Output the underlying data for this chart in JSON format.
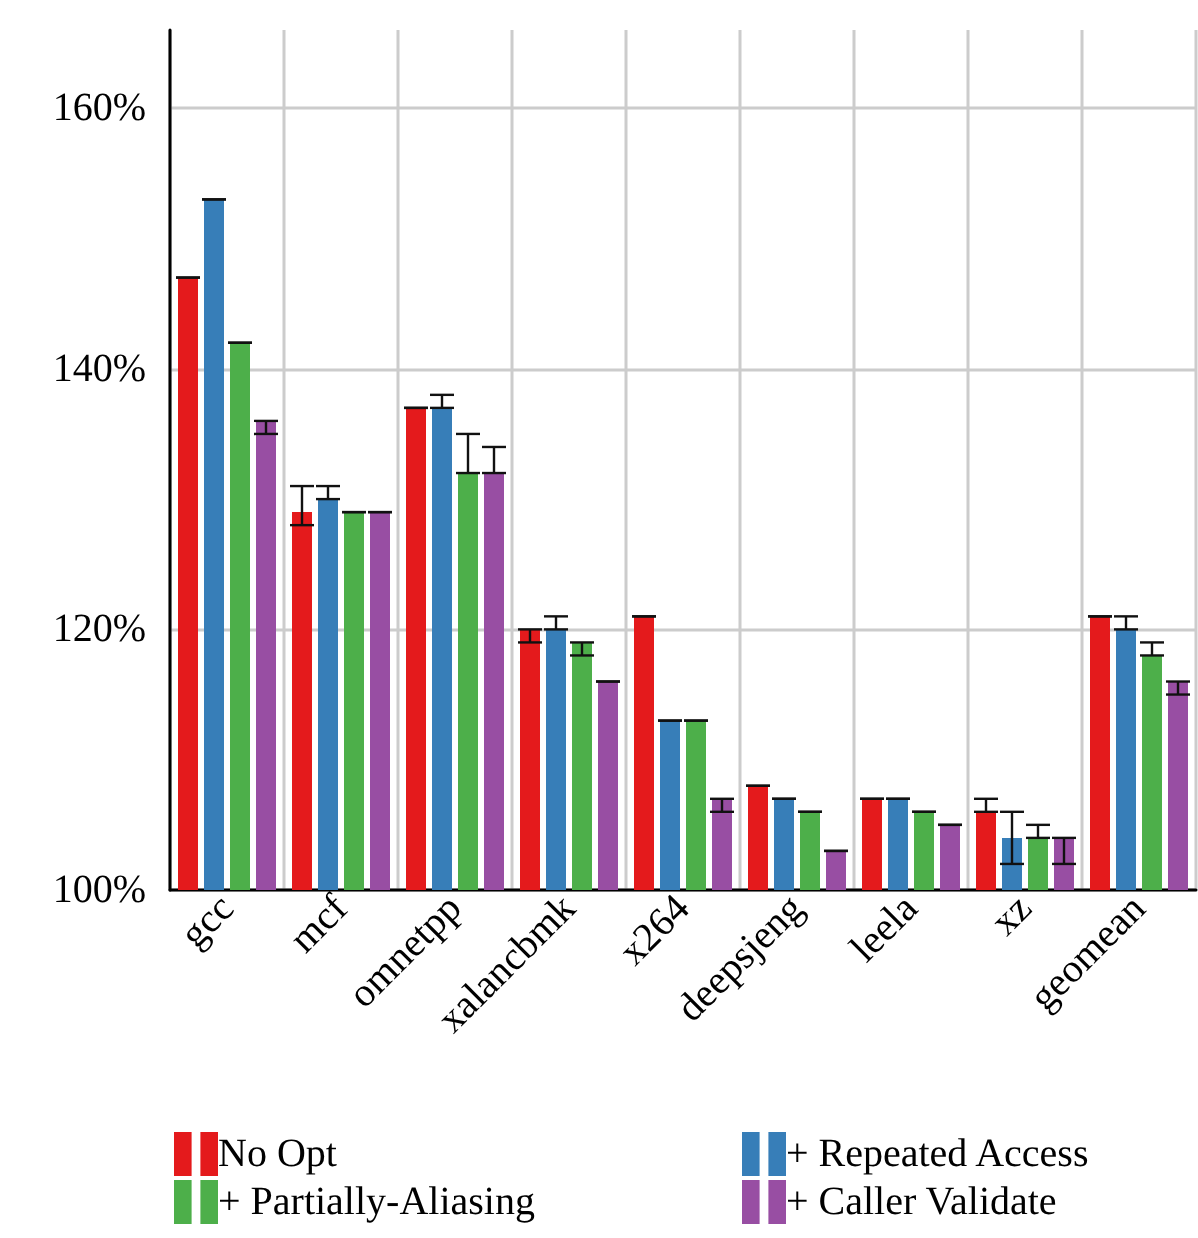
{
  "chart_data": {
    "type": "bar",
    "categories": [
      "gcc",
      "mcf",
      "omnetpp",
      "xalancbmk",
      "x264",
      "deepsjeng",
      "leela",
      "xz",
      "geomean"
    ],
    "series": [
      {
        "name": "No Opt",
        "color": "#e41a1c",
        "values": [
          147,
          129,
          137,
          120,
          121,
          108,
          107,
          106,
          121
        ],
        "errors": [
          [
            147,
            147
          ],
          [
            128,
            131
          ],
          [
            137,
            137
          ],
          [
            119,
            120
          ],
          [
            121,
            121
          ],
          [
            108,
            108
          ],
          [
            107,
            107
          ],
          [
            106,
            107
          ],
          [
            121,
            121
          ]
        ]
      },
      {
        "name": "+ Repeated Access",
        "color": "#377eb8",
        "values": [
          153,
          130,
          137,
          120,
          113,
          107,
          107,
          104,
          120
        ],
        "errors": [
          [
            153,
            153
          ],
          [
            130,
            131
          ],
          [
            137,
            138
          ],
          [
            120,
            121
          ],
          [
            113,
            113
          ],
          [
            107,
            107
          ],
          [
            107,
            107
          ],
          [
            102,
            106
          ],
          [
            120,
            121
          ]
        ]
      },
      {
        "name": "+ Partially-Aliasing",
        "color": "#4daf4a",
        "values": [
          142,
          129,
          132,
          119,
          113,
          106,
          106,
          104,
          118
        ],
        "errors": [
          [
            142,
            142
          ],
          [
            129,
            129
          ],
          [
            132,
            135
          ],
          [
            118,
            119
          ],
          [
            113,
            113
          ],
          [
            106,
            106
          ],
          [
            106,
            106
          ],
          [
            104,
            105
          ],
          [
            118,
            119
          ]
        ]
      },
      {
        "name": "+ Caller Validate",
        "color": "#984ea3",
        "values": [
          136,
          129,
          132,
          116,
          107,
          103,
          105,
          104,
          116
        ],
        "errors": [
          [
            135,
            136
          ],
          [
            129,
            129
          ],
          [
            132,
            134
          ],
          [
            116,
            116
          ],
          [
            106,
            107
          ],
          [
            103,
            103
          ],
          [
            105,
            105
          ],
          [
            102,
            104
          ],
          [
            115,
            116
          ]
        ]
      }
    ],
    "ylim": [
      100,
      166
    ],
    "yticks": [
      {
        "value": 100,
        "label": "100%"
      },
      {
        "value": 120,
        "label": "120%"
      },
      {
        "value": 140,
        "label": "140%"
      },
      {
        "value": 160,
        "label": "160%"
      }
    ],
    "grid": true,
    "legend": "bottom"
  }
}
